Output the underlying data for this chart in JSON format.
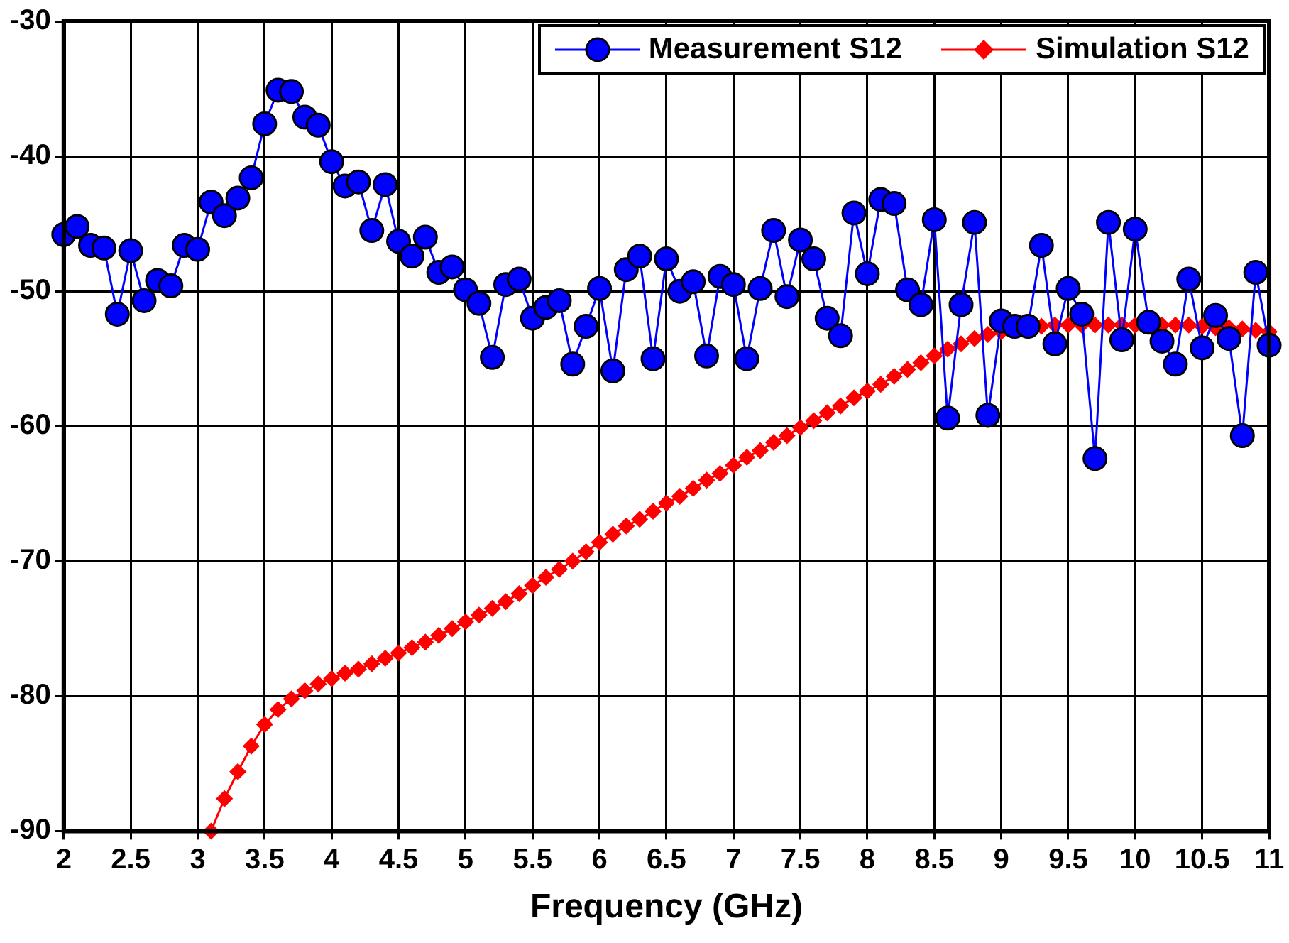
{
  "chart_data": {
    "type": "line",
    "xlabel": "Frequency (GHz)",
    "xlim": [
      2,
      11
    ],
    "xticks": [
      2,
      2.5,
      3,
      3.5,
      4,
      4.5,
      5,
      5.5,
      6,
      6.5,
      7,
      7.5,
      8,
      8.5,
      9,
      9.5,
      10,
      10.5,
      11
    ],
    "ylim": [
      -90,
      -30
    ],
    "yticks": [
      -90,
      -80,
      -70,
      -60,
      -50,
      -40,
      -30
    ],
    "grid": true,
    "legend": "top right",
    "line_style": "solid",
    "series": [
      {
        "name": "Measurement S12",
        "color": "#0000ff",
        "marker": "circle",
        "x": [
          2.0,
          2.1,
          2.2,
          2.3,
          2.4,
          2.5,
          2.6,
          2.7,
          2.8,
          2.9,
          3.0,
          3.1,
          3.2,
          3.3,
          3.4,
          3.5,
          3.6,
          3.7,
          3.8,
          3.9,
          4.0,
          4.1,
          4.2,
          4.3,
          4.4,
          4.5,
          4.6,
          4.7,
          4.8,
          4.9,
          5.0,
          5.1,
          5.2,
          5.3,
          5.4,
          5.5,
          5.6,
          5.7,
          5.8,
          5.9,
          6.0,
          6.1,
          6.2,
          6.3,
          6.4,
          6.5,
          6.6,
          6.7,
          6.8,
          6.9,
          7.0,
          7.1,
          7.2,
          7.3,
          7.4,
          7.5,
          7.6,
          7.7,
          7.8,
          7.9,
          8.0,
          8.1,
          8.2,
          8.3,
          8.4,
          8.5,
          8.6,
          8.7,
          8.8,
          8.9,
          9.0,
          9.1,
          9.2,
          9.3,
          9.4,
          9.5,
          9.6,
          9.7,
          9.8,
          9.9,
          10.0,
          10.1,
          10.2,
          10.3,
          10.4,
          10.5,
          10.6,
          10.7,
          10.8,
          10.9,
          11.0
        ],
        "values": [
          -45.8,
          -45.2,
          -46.6,
          -46.8,
          -51.7,
          -47.0,
          -50.7,
          -49.2,
          -49.6,
          -46.6,
          -46.9,
          -43.4,
          -44.4,
          -43.1,
          -41.6,
          -37.6,
          -35.1,
          -35.2,
          -37.1,
          -37.7,
          -40.4,
          -42.2,
          -41.9,
          -45.5,
          -42.1,
          -46.3,
          -47.4,
          -46.0,
          -48.6,
          -48.2,
          -49.9,
          -50.9,
          -54.9,
          -49.5,
          -49.1,
          -52.0,
          -51.2,
          -50.7,
          -55.4,
          -52.6,
          -49.8,
          -55.9,
          -48.4,
          -47.4,
          -55.0,
          -47.6,
          -50.0,
          -49.3,
          -54.8,
          -48.9,
          -49.5,
          -55.0,
          -49.8,
          -45.5,
          -50.4,
          -46.2,
          -47.6,
          -52.0,
          -53.3,
          -44.2,
          -48.7,
          -43.2,
          -43.5,
          -49.9,
          -51.0,
          -44.7,
          -59.4,
          -51.0,
          -44.9,
          -59.2,
          -52.2,
          -52.6,
          -52.6,
          -46.6,
          -53.9,
          -49.8,
          -51.7,
          -62.4,
          -44.9,
          -53.6,
          -45.4,
          -52.3,
          -53.7,
          -55.4,
          -49.1,
          -54.2,
          -51.8,
          -53.5,
          -60.7,
          -48.6,
          -54.0
        ]
      },
      {
        "name": "Simulation S12",
        "color": "#ff0000",
        "marker": "diamond",
        "x": [
          3.1,
          3.2,
          3.3,
          3.4,
          3.5,
          3.6,
          3.7,
          3.8,
          3.9,
          4.0,
          4.1,
          4.2,
          4.3,
          4.4,
          4.5,
          4.6,
          4.7,
          4.8,
          4.9,
          5.0,
          5.1,
          5.2,
          5.3,
          5.4,
          5.5,
          5.6,
          5.7,
          5.8,
          5.9,
          6.0,
          6.1,
          6.2,
          6.3,
          6.4,
          6.5,
          6.6,
          6.7,
          6.8,
          6.9,
          7.0,
          7.1,
          7.2,
          7.3,
          7.4,
          7.5,
          7.6,
          7.7,
          7.8,
          7.9,
          8.0,
          8.1,
          8.2,
          8.3,
          8.4,
          8.5,
          8.6,
          8.7,
          8.8,
          8.9,
          9.0,
          9.1,
          9.2,
          9.3,
          9.4,
          9.5,
          9.6,
          9.7,
          9.8,
          9.9,
          10.0,
          10.1,
          10.2,
          10.3,
          10.4,
          10.5,
          10.6,
          10.7,
          10.8,
          10.9,
          11.0
        ],
        "values": [
          -90,
          -87.6,
          -85.6,
          -83.7,
          -82.1,
          -81.0,
          -80.2,
          -79.6,
          -79.1,
          -78.7,
          -78.3,
          -78.0,
          -77.6,
          -77.2,
          -76.8,
          -76.4,
          -76.0,
          -75.5,
          -75.0,
          -74.5,
          -74.0,
          -73.5,
          -73.0,
          -72.4,
          -71.8,
          -71.2,
          -70.6,
          -70.0,
          -69.3,
          -68.6,
          -68.0,
          -67.4,
          -66.9,
          -66.3,
          -65.7,
          -65.2,
          -64.6,
          -64.0,
          -63.5,
          -62.9,
          -62.3,
          -61.8,
          -61.2,
          -60.7,
          -60.1,
          -59.6,
          -59.0,
          -58.5,
          -57.9,
          -57.4,
          -56.9,
          -56.3,
          -55.8,
          -55.3,
          -54.8,
          -54.3,
          -53.9,
          -53.5,
          -53.2,
          -53.0,
          -52.8,
          -52.7,
          -52.6,
          -52.5,
          -52.5,
          -52.5,
          -52.5,
          -52.5,
          -52.5,
          -52.5,
          -52.5,
          -52.5,
          -52.5,
          -52.5,
          -52.6,
          -52.7,
          -52.7,
          -52.8,
          -52.9,
          -53.0
        ]
      }
    ]
  }
}
